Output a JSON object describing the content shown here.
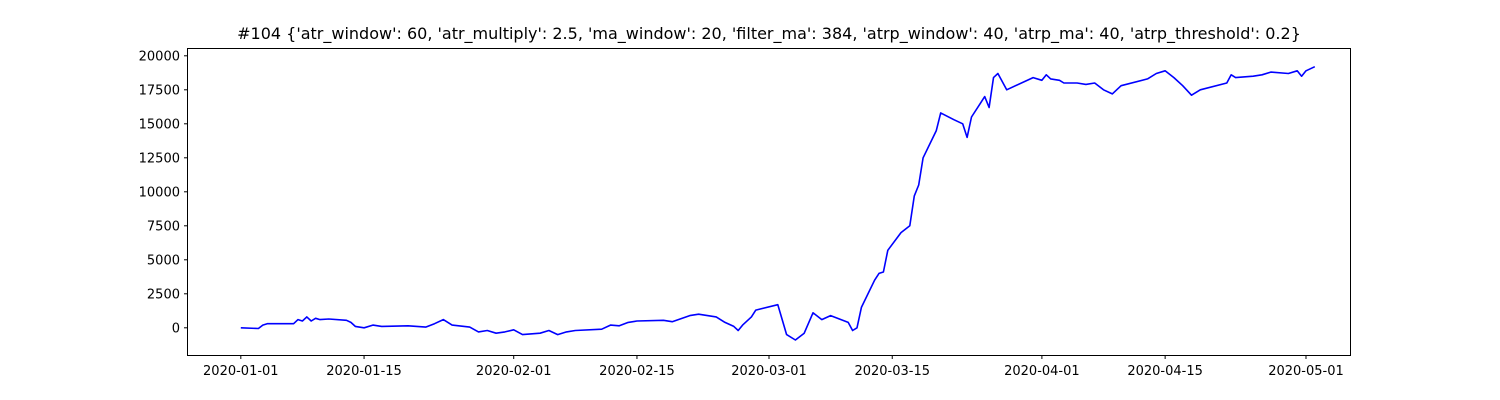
{
  "chart_data": {
    "type": "line",
    "title": "#104 {'atr_window': 60, 'atr_multiply': 2.5, 'ma_window': 20, 'filter_ma': 384, 'atrp_window': 40, 'atrp_ma': 40, 'atrp_threshold': 0.2}",
    "xlabel": "",
    "ylabel": "",
    "x_ticks": [
      "2020-01-01",
      "2020-01-15",
      "2020-02-01",
      "2020-02-15",
      "2020-03-01",
      "2020-03-15",
      "2020-04-01",
      "2020-04-15",
      "2020-05-01"
    ],
    "y_ticks": [
      0,
      2500,
      5000,
      7500,
      10000,
      12500,
      15000,
      17500,
      20000
    ],
    "y_tick_labels": [
      "0",
      "2500",
      "5000",
      "7500",
      "10000",
      "12500",
      "15000",
      "17500",
      "20000"
    ],
    "xlim": [
      "2019-12-26",
      "2020-05-06"
    ],
    "ylim": [
      -2000,
      20500
    ],
    "grid": false,
    "color": "#0000ff",
    "series": [
      {
        "points": [
          [
            "2020-01-01",
            0
          ],
          [
            "2020-01-03",
            -50
          ],
          [
            "2020-01-03 12:00",
            200
          ],
          [
            "2020-01-04",
            300
          ],
          [
            "2020-01-07",
            300
          ],
          [
            "2020-01-07 12:00",
            600
          ],
          [
            "2020-01-08",
            500
          ],
          [
            "2020-01-08 12:00",
            800
          ],
          [
            "2020-01-09",
            500
          ],
          [
            "2020-01-09 12:00",
            700
          ],
          [
            "2020-01-10",
            600
          ],
          [
            "2020-01-11",
            650
          ],
          [
            "2020-01-13",
            550
          ],
          [
            "2020-01-13 12:00",
            400
          ],
          [
            "2020-01-14",
            100
          ],
          [
            "2020-01-15",
            0
          ],
          [
            "2020-01-16",
            200
          ],
          [
            "2020-01-17",
            100
          ],
          [
            "2020-01-20",
            150
          ],
          [
            "2020-01-22",
            50
          ],
          [
            "2020-01-23",
            300
          ],
          [
            "2020-01-24",
            600
          ],
          [
            "2020-01-25",
            200
          ],
          [
            "2020-01-27",
            50
          ],
          [
            "2020-01-28",
            -300
          ],
          [
            "2020-01-29",
            -200
          ],
          [
            "2020-01-30",
            -400
          ],
          [
            "2020-01-31",
            -300
          ],
          [
            "2020-02-01",
            -150
          ],
          [
            "2020-02-02",
            -500
          ],
          [
            "2020-02-04",
            -400
          ],
          [
            "2020-02-05",
            -200
          ],
          [
            "2020-02-06",
            -500
          ],
          [
            "2020-02-07",
            -300
          ],
          [
            "2020-02-08",
            -200
          ],
          [
            "2020-02-11",
            -100
          ],
          [
            "2020-02-12",
            200
          ],
          [
            "2020-02-13",
            150
          ],
          [
            "2020-02-14",
            400
          ],
          [
            "2020-02-15",
            500
          ],
          [
            "2020-02-18",
            550
          ],
          [
            "2020-02-19",
            450
          ],
          [
            "2020-02-21",
            900
          ],
          [
            "2020-02-22",
            1000
          ],
          [
            "2020-02-24",
            800
          ],
          [
            "2020-02-25",
            400
          ],
          [
            "2020-02-26",
            100
          ],
          [
            "2020-02-26 12:00",
            -200
          ],
          [
            "2020-02-27",
            200
          ],
          [
            "2020-02-28",
            800
          ],
          [
            "2020-02-28 12:00",
            1300
          ],
          [
            "2020-03-02",
            1700
          ],
          [
            "2020-03-02 12:00",
            600
          ],
          [
            "2020-03-03",
            -500
          ],
          [
            "2020-03-04",
            -900
          ],
          [
            "2020-03-05",
            -400
          ],
          [
            "2020-03-06",
            1100
          ],
          [
            "2020-03-07",
            600
          ],
          [
            "2020-03-08",
            900
          ],
          [
            "2020-03-10",
            400
          ],
          [
            "2020-03-10 12:00",
            -200
          ],
          [
            "2020-03-11",
            0
          ],
          [
            "2020-03-11 12:00",
            1500
          ],
          [
            "2020-03-13",
            3500
          ],
          [
            "2020-03-13 12:00",
            4000
          ],
          [
            "2020-03-14",
            4100
          ],
          [
            "2020-03-14 12:00",
            5700
          ],
          [
            "2020-03-16",
            7000
          ],
          [
            "2020-03-17",
            7500
          ],
          [
            "2020-03-17 12:00",
            9700
          ],
          [
            "2020-03-18",
            10500
          ],
          [
            "2020-03-18 12:00",
            12500
          ],
          [
            "2020-03-20",
            14500
          ],
          [
            "2020-03-20 12:00",
            15800
          ],
          [
            "2020-03-22",
            15300
          ],
          [
            "2020-03-23",
            15000
          ],
          [
            "2020-03-23 12:00",
            14000
          ],
          [
            "2020-03-24",
            15500
          ],
          [
            "2020-03-25",
            16500
          ],
          [
            "2020-03-25 12:00",
            17000
          ],
          [
            "2020-03-26",
            16200
          ],
          [
            "2020-03-26 12:00",
            18400
          ],
          [
            "2020-03-27",
            18700
          ],
          [
            "2020-03-28",
            17500
          ],
          [
            "2020-03-31",
            18400
          ],
          [
            "2020-04-01",
            18200
          ],
          [
            "2020-04-01 12:00",
            18600
          ],
          [
            "2020-04-02",
            18300
          ],
          [
            "2020-04-03",
            18200
          ],
          [
            "2020-04-03 12:00",
            18000
          ],
          [
            "2020-04-05",
            18000
          ],
          [
            "2020-04-06",
            17900
          ],
          [
            "2020-04-07",
            18000
          ],
          [
            "2020-04-08",
            17500
          ],
          [
            "2020-04-09",
            17200
          ],
          [
            "2020-04-10",
            17800
          ],
          [
            "2020-04-13",
            18300
          ],
          [
            "2020-04-14",
            18700
          ],
          [
            "2020-04-15",
            18900
          ],
          [
            "2020-04-16",
            18400
          ],
          [
            "2020-04-17",
            17800
          ],
          [
            "2020-04-18",
            17100
          ],
          [
            "2020-04-19",
            17500
          ],
          [
            "2020-04-22",
            18000
          ],
          [
            "2020-04-22 12:00",
            18600
          ],
          [
            "2020-04-23",
            18400
          ],
          [
            "2020-04-25",
            18500
          ],
          [
            "2020-04-26",
            18600
          ],
          [
            "2020-04-27",
            18800
          ],
          [
            "2020-04-29",
            18700
          ],
          [
            "2020-04-30",
            18900
          ],
          [
            "2020-04-30 12:00",
            18500
          ],
          [
            "2020-05-01",
            18900
          ],
          [
            "2020-05-02",
            19200
          ]
        ]
      }
    ]
  }
}
